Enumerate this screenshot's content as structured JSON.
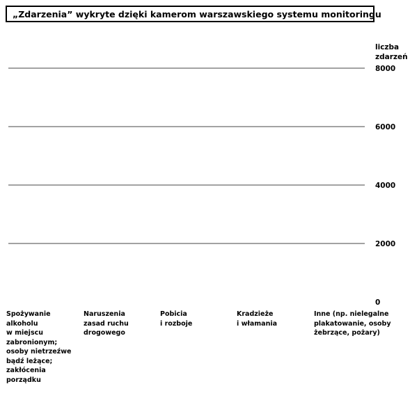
{
  "chart_data": {
    "type": "bar",
    "title": "„Zdarzenia” wykryte dzięki kamerom warszawskiego systemu monitoringu",
    "ylabel_lines": [
      "liczba",
      "zdarzeń"
    ],
    "ylim": [
      0,
      8000
    ],
    "yticks": [
      0,
      2000,
      4000,
      6000,
      8000
    ],
    "grid": true,
    "categories": [
      [
        "Spożywanie",
        "alkoholu",
        "w miejscu",
        "zabronionym;",
        "osoby nietrzeźwe",
        "bądź leżące;",
        "zakłócenia",
        "porządku"
      ],
      [
        "Naruszenia",
        "zasad ruchu",
        "drogowego"
      ],
      [
        "Pobicia",
        "i rozboje"
      ],
      [
        "Kradzieże",
        "i włamania"
      ],
      [
        "Inne (np. nielegalne",
        "plakatowanie, osoby",
        "żebrzące, pożary)"
      ]
    ]
  }
}
